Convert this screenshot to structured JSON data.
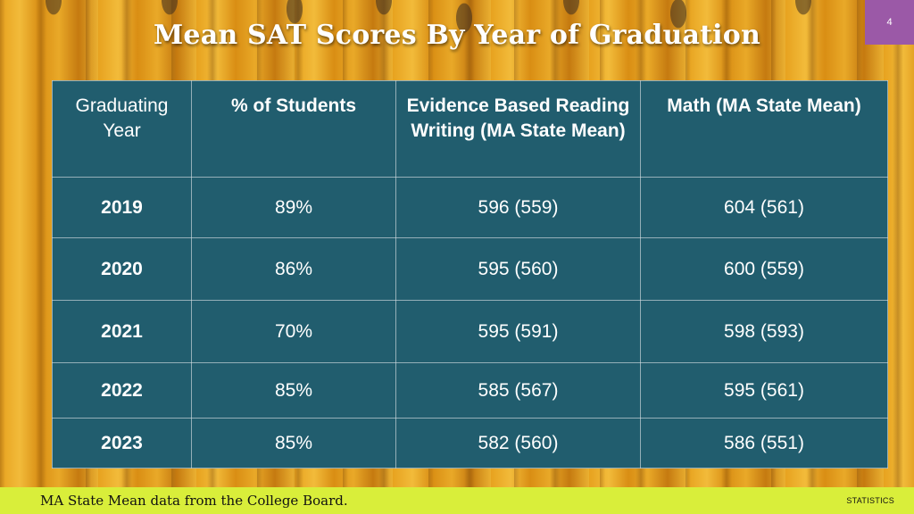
{
  "slide": {
    "title": "Mean SAT Scores By Year of Graduation",
    "number": "4"
  },
  "table": {
    "headers": [
      "Graduating Year",
      "% of Students",
      "Evidence Based Reading Writing (MA State Mean)",
      "Math (MA State Mean)"
    ],
    "rows": [
      [
        "2019",
        "89%",
        "596 (559)",
        "604 (561)"
      ],
      [
        "2020",
        "86%",
        "595 (560)",
        "600 (559)"
      ],
      [
        "2021",
        "70%",
        "595 (591)",
        "598 (593)"
      ],
      [
        "2022",
        "85%",
        "585 (567)",
        "595 (561)"
      ],
      [
        "2023",
        "85%",
        "582 (560)",
        "586 (551)"
      ]
    ]
  },
  "footer": {
    "note": "MA State Mean data from the College Board.",
    "label": "STATISTICS"
  }
}
